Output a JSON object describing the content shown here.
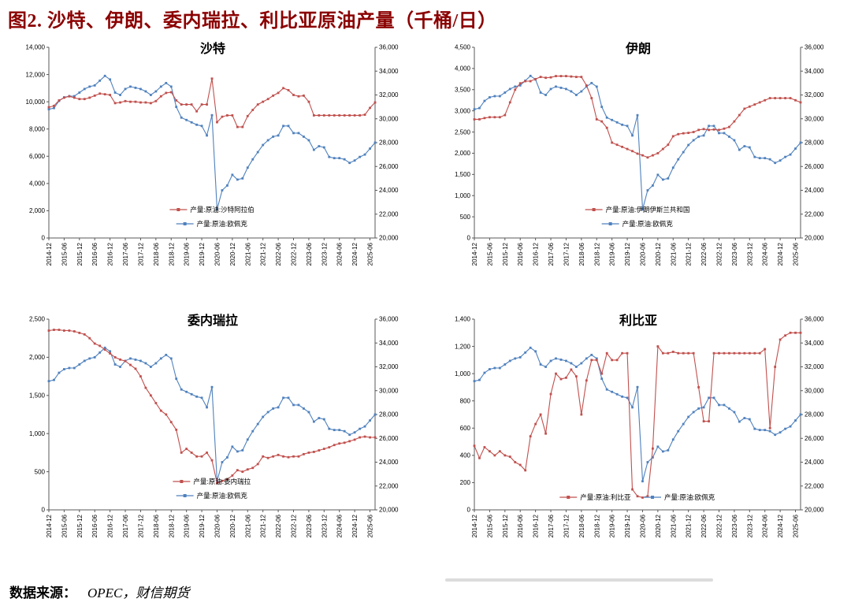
{
  "figure": {
    "title": "图2. 沙特、伊朗、委内瑞拉、利比亚原油产量（千桶/日）",
    "title_color": "#8b0000",
    "source_label": "数据来源：",
    "source_text": "OPEC，财信期货"
  },
  "chart_data": {
    "type": "line",
    "layout": "2x2-grid",
    "x_dates": [
      "2014-12",
      "2015-02",
      "2015-04",
      "2015-06",
      "2015-08",
      "2015-10",
      "2015-12",
      "2016-02",
      "2016-04",
      "2016-06",
      "2016-08",
      "2016-10",
      "2016-12",
      "2017-02",
      "2017-04",
      "2017-06",
      "2017-08",
      "2017-10",
      "2017-12",
      "2018-02",
      "2018-04",
      "2018-06",
      "2018-08",
      "2018-10",
      "2018-12",
      "2019-02",
      "2019-04",
      "2019-06",
      "2019-08",
      "2019-10",
      "2019-12",
      "2020-02",
      "2020-04",
      "2020-06",
      "2020-08",
      "2020-10",
      "2020-12",
      "2021-02",
      "2021-04",
      "2021-06",
      "2021-08",
      "2021-10",
      "2021-12",
      "2022-02",
      "2022-04",
      "2022-06",
      "2022-08",
      "2022-10",
      "2022-12",
      "2023-02",
      "2023-04",
      "2023-06",
      "2023-08",
      "2023-10",
      "2023-12",
      "2024-02",
      "2024-04",
      "2024-06",
      "2024-08",
      "2024-10",
      "2024-12",
      "2025-02",
      "2025-04",
      "2025-06",
      "2025-08"
    ],
    "x_tick_labels": [
      "2014-12",
      "2015-06",
      "2015-12",
      "2016-06",
      "2016-12",
      "2017-06",
      "2017-12",
      "2018-06",
      "2018-12",
      "2019-06",
      "2019-12",
      "2020-06",
      "2020-12",
      "2021-06",
      "2021-12",
      "2022-06",
      "2022-12",
      "2023-06",
      "2023-12",
      "2024-06",
      "2024-12",
      "2025-06"
    ],
    "right_axis": {
      "min": 20000,
      "max": 36000,
      "step": 2000
    },
    "opec": {
      "name": "产量:原油:欧佩克",
      "color": "#4f81bd",
      "axis": "right",
      "values": [
        30800,
        30900,
        31500,
        31800,
        31900,
        31900,
        32200,
        32500,
        32700,
        32800,
        33200,
        33600,
        33300,
        32200,
        32000,
        32500,
        32700,
        32600,
        32500,
        32300,
        32000,
        32300,
        32700,
        33000,
        32700,
        31000,
        30100,
        29900,
        29700,
        29500,
        29400,
        28600,
        30300,
        22400,
        24000,
        24400,
        25300,
        24900,
        25000,
        25900,
        26600,
        27200,
        27800,
        28200,
        28500,
        28600,
        29400,
        29400,
        28800,
        28800,
        28500,
        28200,
        27400,
        27700,
        27600,
        26800,
        26700,
        26700,
        26600,
        26300,
        26500,
        26800,
        27000,
        27500,
        28000
      ]
    },
    "charts": [
      {
        "title": "沙特",
        "left_axis": {
          "min": 0,
          "max": 14000,
          "step": 2000
        },
        "legend_layout": "stacked",
        "country": {
          "name": "产量:原油:沙特阿拉伯",
          "color": "#c0504d",
          "axis": "left",
          "values": [
            9600,
            9700,
            10100,
            10300,
            10400,
            10300,
            10200,
            10200,
            10300,
            10450,
            10600,
            10550,
            10500,
            9900,
            9950,
            10050,
            10000,
            10000,
            9950,
            9950,
            9900,
            10050,
            10400,
            10650,
            10700,
            10100,
            9800,
            9800,
            9800,
            9300,
            9800,
            9800,
            11700,
            8500,
            8900,
            9000,
            9000,
            8150,
            8150,
            8950,
            9400,
            9800,
            10000,
            10200,
            10450,
            10650,
            11000,
            10850,
            10500,
            10400,
            10450,
            10000,
            9000,
            9000,
            9000,
            9000,
            9000,
            9000,
            9000,
            9000,
            9000,
            9000,
            9050,
            9550,
            9950
          ]
        }
      },
      {
        "title": "伊朗",
        "left_axis": {
          "min": 0,
          "max": 4500,
          "step": 500
        },
        "legend_layout": "stacked",
        "country": {
          "name": "产量:原油:伊朗伊斯兰共和国",
          "color": "#c0504d",
          "axis": "left",
          "values": [
            2800,
            2800,
            2830,
            2850,
            2850,
            2850,
            2900,
            3200,
            3500,
            3650,
            3700,
            3700,
            3750,
            3800,
            3780,
            3790,
            3820,
            3820,
            3820,
            3810,
            3800,
            3800,
            3600,
            3300,
            2800,
            2750,
            2600,
            2250,
            2200,
            2150,
            2100,
            2050,
            1990,
            1950,
            1900,
            1950,
            2000,
            2100,
            2200,
            2400,
            2450,
            2470,
            2480,
            2500,
            2550,
            2570,
            2550,
            2560,
            2550,
            2580,
            2620,
            2750,
            2900,
            3050,
            3100,
            3150,
            3200,
            3250,
            3300,
            3300,
            3300,
            3300,
            3300,
            3250,
            3200
          ]
        }
      },
      {
        "title": "委内瑞拉",
        "left_axis": {
          "min": 0,
          "max": 2500,
          "step": 500
        },
        "legend_layout": "stacked",
        "country": {
          "name": "产量:原油:委内瑞拉",
          "color": "#c0504d",
          "axis": "left",
          "values": [
            2350,
            2360,
            2360,
            2350,
            2350,
            2340,
            2320,
            2300,
            2250,
            2180,
            2150,
            2100,
            2050,
            2000,
            1970,
            1950,
            1900,
            1850,
            1750,
            1600,
            1500,
            1400,
            1300,
            1250,
            1150,
            1050,
            750,
            800,
            750,
            700,
            700,
            750,
            650,
            350,
            380,
            400,
            450,
            520,
            500,
            530,
            550,
            600,
            700,
            680,
            700,
            720,
            700,
            690,
            700,
            700,
            730,
            750,
            760,
            780,
            800,
            820,
            850,
            870,
            880,
            900,
            920,
            950,
            960,
            950,
            950
          ]
        }
      },
      {
        "title": "利比亚",
        "left_axis": {
          "min": 0,
          "max": 1400,
          "step": 200
        },
        "legend_layout": "row",
        "country": {
          "name": "产量:原油:利比亚",
          "color": "#c0504d",
          "axis": "left",
          "values": [
            470,
            380,
            460,
            430,
            400,
            430,
            400,
            390,
            350,
            330,
            290,
            540,
            630,
            700,
            560,
            850,
            1000,
            960,
            970,
            1030,
            980,
            700,
            950,
            1100,
            1100,
            1000,
            1150,
            1100,
            1100,
            1150,
            1150,
            150,
            100,
            90,
            100,
            450,
            1200,
            1150,
            1150,
            1160,
            1150,
            1150,
            1150,
            1150,
            900,
            650,
            650,
            1150,
            1150,
            1150,
            1150,
            1150,
            1150,
            1150,
            1150,
            1150,
            1150,
            1180,
            600,
            1050,
            1250,
            1280,
            1300,
            1300,
            1300
          ]
        }
      }
    ]
  }
}
